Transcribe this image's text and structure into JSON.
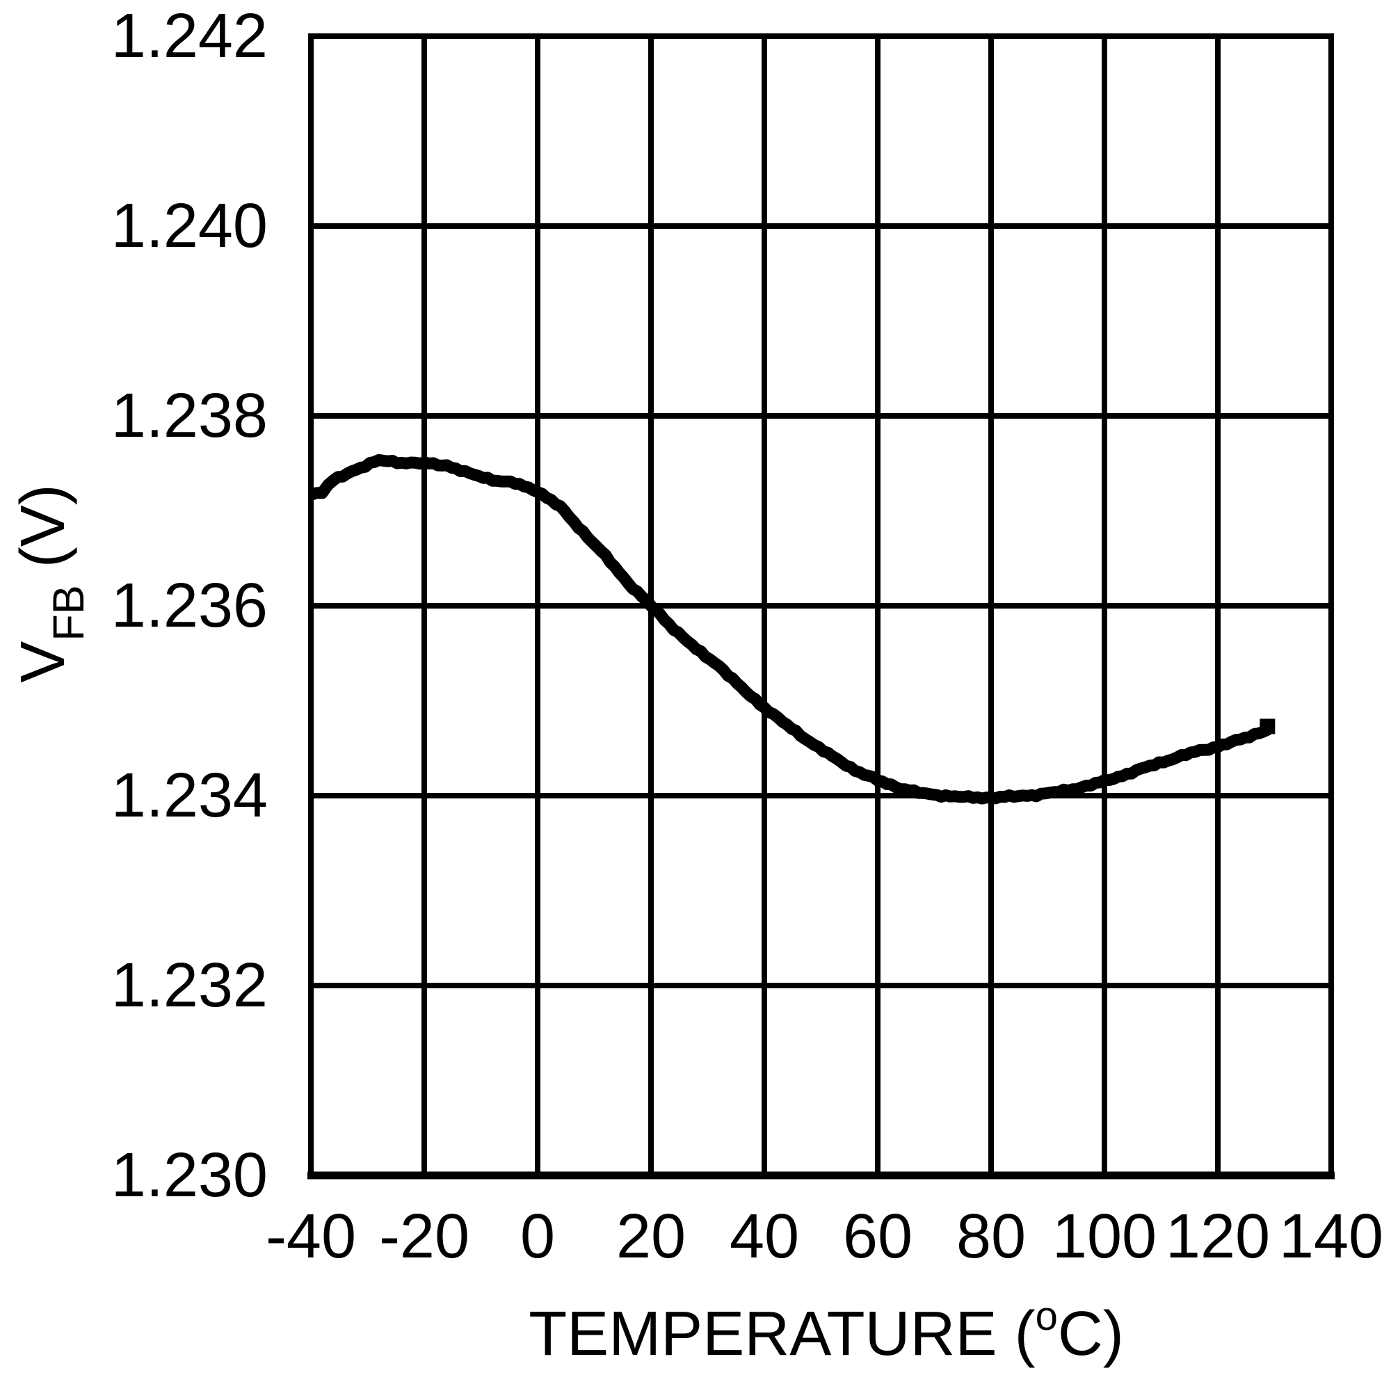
{
  "chart_data": {
    "type": "line",
    "title": "",
    "x_axis": {
      "label_prefix": "TEMPERATURE (",
      "label_sup": "o",
      "label_suffix": "C)",
      "range": [
        -40,
        140
      ],
      "tick_step": 20,
      "tick_labels": [
        "-40",
        "-20",
        "0",
        "20",
        "40",
        "60",
        "80",
        "100",
        "120",
        "140"
      ]
    },
    "y_axis": {
      "label_main": "V",
      "label_sub": "FB",
      "label_rest": "(V)",
      "range": [
        1.23,
        1.242
      ],
      "tick_step": 0.002,
      "tick_labels": [
        "1.230",
        "1.232",
        "1.234",
        "1.236",
        "1.238",
        "1.240",
        "1.242"
      ]
    },
    "grid": true,
    "legend": "none",
    "line_color": "#000000",
    "series": [
      {
        "name": "VFB",
        "points": [
          [
            -40,
            1.23718
          ],
          [
            -38,
            1.2372
          ],
          [
            -36,
            1.23732
          ],
          [
            -32,
            1.23744
          ],
          [
            -28,
            1.23753
          ],
          [
            -24,
            1.23751
          ],
          [
            -20,
            1.2375
          ],
          [
            -16,
            1.23748
          ],
          [
            -12,
            1.23739
          ],
          [
            -8,
            1.23733
          ],
          [
            -4,
            1.23729
          ],
          [
            0,
            1.23721
          ],
          [
            4,
            1.23704
          ],
          [
            8,
            1.23678
          ],
          [
            12,
            1.23652
          ],
          [
            16,
            1.23624
          ],
          [
            20,
            1.236
          ],
          [
            24,
            1.23576
          ],
          [
            28,
            1.23554
          ],
          [
            32,
            1.23537
          ],
          [
            36,
            1.23513
          ],
          [
            40,
            1.23493
          ],
          [
            44,
            1.23474
          ],
          [
            48,
            1.23457
          ],
          [
            52,
            1.23441
          ],
          [
            56,
            1.23427
          ],
          [
            60,
            1.23416
          ],
          [
            64,
            1.23408
          ],
          [
            68,
            1.23402
          ],
          [
            72,
            1.234
          ],
          [
            76,
            1.23398
          ],
          [
            80,
            1.23398
          ],
          [
            84,
            1.23399
          ],
          [
            88,
            1.23401
          ],
          [
            92,
            1.23404
          ],
          [
            96,
            1.23409
          ],
          [
            100,
            1.23415
          ],
          [
            104,
            1.23423
          ],
          [
            108,
            1.23431
          ],
          [
            112,
            1.23439
          ],
          [
            116,
            1.23446
          ],
          [
            120,
            1.23452
          ],
          [
            124,
            1.23459
          ],
          [
            128,
            1.23468
          ],
          [
            129,
            1.2347
          ]
        ]
      }
    ]
  }
}
